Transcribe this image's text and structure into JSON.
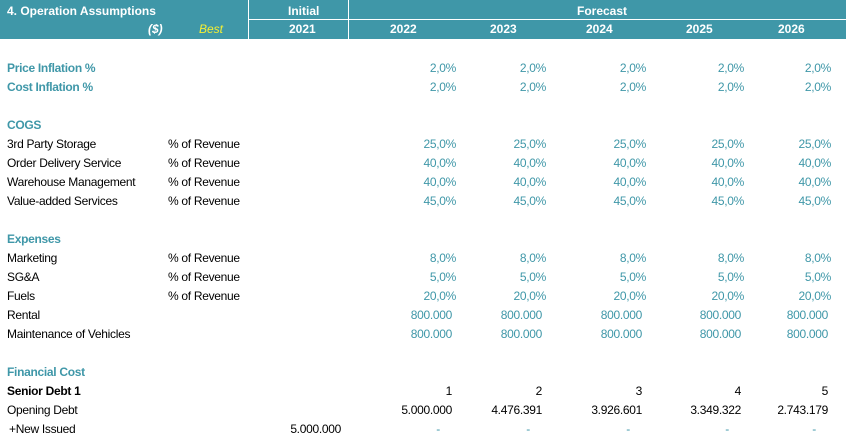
{
  "header": {
    "title": "4. Operation Assumptions",
    "currency": "($)",
    "scenario": "Best",
    "initial_label": "Initial",
    "forecast_label": "Forecast",
    "initial_year": "2021",
    "years": [
      "2022",
      "2023",
      "2024",
      "2025",
      "2026"
    ]
  },
  "inflation": {
    "price_label": "Price Inflation %",
    "price_values": [
      "2,0%",
      "2,0%",
      "2,0%",
      "2,0%",
      "2,0%"
    ],
    "cost_label": "Cost Inflation %",
    "cost_values": [
      "2,0%",
      "2,0%",
      "2,0%",
      "2,0%",
      "2,0%"
    ]
  },
  "cogs": {
    "title": "COGS",
    "rows": [
      {
        "label": "3rd Party Storage",
        "unit": "% of Revenue",
        "values": [
          "25,0%",
          "25,0%",
          "25,0%",
          "25,0%",
          "25,0%"
        ]
      },
      {
        "label": "Order Delivery Service",
        "unit": "% of Revenue",
        "values": [
          "40,0%",
          "40,0%",
          "40,0%",
          "40,0%",
          "40,0%"
        ]
      },
      {
        "label": "Warehouse Management",
        "unit": "% of Revenue",
        "values": [
          "40,0%",
          "40,0%",
          "40,0%",
          "40,0%",
          "40,0%"
        ]
      },
      {
        "label": "Value-added Services",
        "unit": "% of Revenue",
        "values": [
          "45,0%",
          "45,0%",
          "45,0%",
          "45,0%",
          "45,0%"
        ]
      }
    ]
  },
  "expenses": {
    "title": "Expenses",
    "rows": [
      {
        "label": "Marketing",
        "unit": "% of Revenue",
        "values": [
          "8,0%",
          "8,0%",
          "8,0%",
          "8,0%",
          "8,0%"
        ]
      },
      {
        "label": "SG&A",
        "unit": "% of Revenue",
        "values": [
          "5,0%",
          "5,0%",
          "5,0%",
          "5,0%",
          "5,0%"
        ]
      },
      {
        "label": "Fuels",
        "unit": "% of Revenue",
        "values": [
          "20,0%",
          "20,0%",
          "20,0%",
          "20,0%",
          "20,0%"
        ]
      },
      {
        "label": "Rental",
        "unit": "",
        "values": [
          "800.000",
          "800.000",
          "800.000",
          "800.000",
          "800.000"
        ]
      },
      {
        "label": "Maintenance of Vehicles",
        "unit": "",
        "values": [
          "800.000",
          "800.000",
          "800.000",
          "800.000",
          "800.000"
        ]
      }
    ]
  },
  "financial": {
    "title": "Financial Cost",
    "senior_label": "Senior Debt 1",
    "periods": [
      "1",
      "2",
      "3",
      "4",
      "5"
    ],
    "opening_label": "Opening Debt",
    "opening_values": [
      "5.000.000",
      "4.476.391",
      "3.926.601",
      "3.349.322",
      "2.743.179"
    ],
    "new_issued_label": "+New Issued",
    "new_issued_initial": "5.000.000",
    "new_issued_values": [
      "-",
      "-",
      "-",
      "-",
      "-"
    ]
  }
}
